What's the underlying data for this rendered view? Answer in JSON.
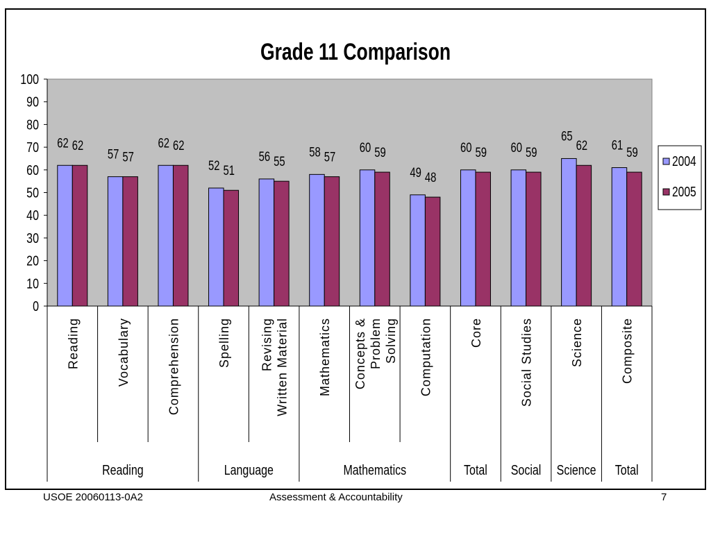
{
  "footer": {
    "left": "USOE 20060113-0A2",
    "center": "Assessment & Accountability",
    "right": "7"
  },
  "chart_data": {
    "type": "bar",
    "title": "Grade 11 Comparison",
    "ylim": [
      0,
      100
    ],
    "yticks": [
      0,
      10,
      20,
      30,
      40,
      50,
      60,
      70,
      80,
      90,
      100
    ],
    "grid": false,
    "legend_position": "right",
    "categories": [
      [
        "Reading"
      ],
      [
        "Vocabulary"
      ],
      [
        "Comprehension"
      ],
      [
        "Spelling"
      ],
      [
        "Revising",
        "Written Material"
      ],
      [
        "Mathematics"
      ],
      [
        "Concepts &",
        "Problem",
        "Solving"
      ],
      [
        "Computation"
      ],
      [
        "Core"
      ],
      [
        "Social Studies"
      ],
      [
        "Science"
      ],
      [
        "Composite"
      ]
    ],
    "groups": [
      {
        "label": "Reading",
        "span": 3
      },
      {
        "label": "Language",
        "span": 2
      },
      {
        "label": "Mathematics",
        "span": 3
      },
      {
        "label": "Total",
        "span": 1
      },
      {
        "label": "Social",
        "span": 1
      },
      {
        "label": "Science",
        "span": 1
      },
      {
        "label": "Total",
        "span": 1
      }
    ],
    "series": [
      {
        "name": "2004",
        "color": "#9999FF",
        "values": [
          62,
          57,
          62,
          52,
          56,
          58,
          60,
          49,
          60,
          60,
          65,
          61
        ]
      },
      {
        "name": "2005",
        "color": "#993366",
        "values": [
          62,
          57,
          62,
          51,
          55,
          57,
          59,
          48,
          59,
          59,
          62,
          59
        ]
      }
    ],
    "plot_background": "#C0C0C0"
  }
}
